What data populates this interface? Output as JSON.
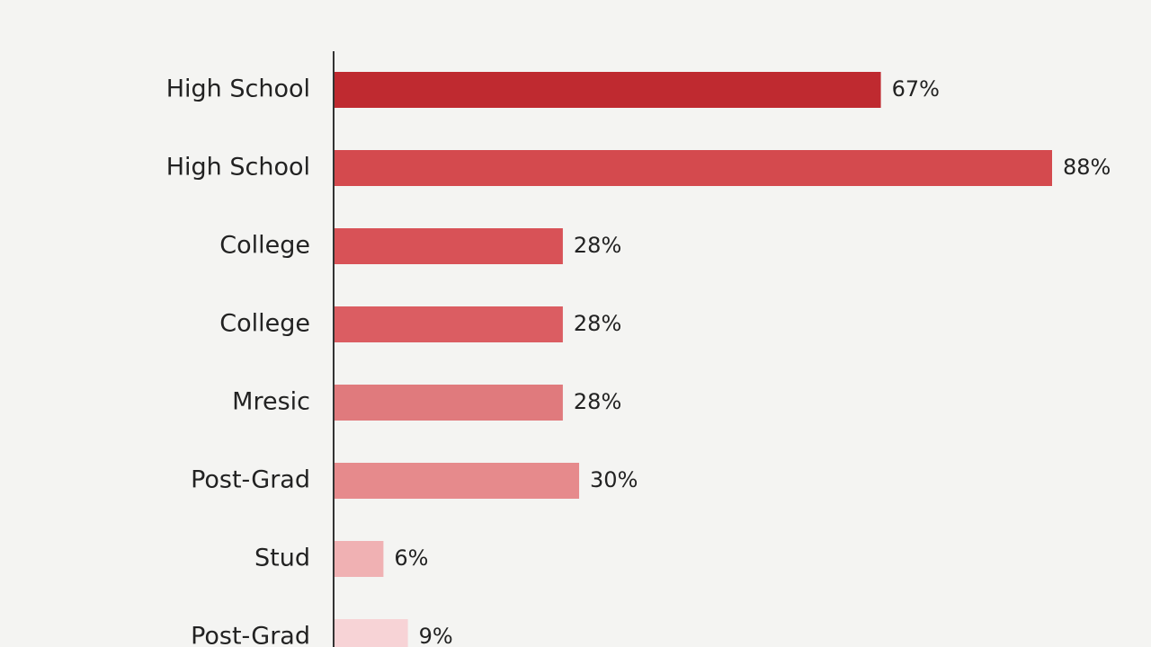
{
  "chart_data": {
    "type": "barh",
    "categories": [
      "High School",
      "High School",
      "College",
      "College",
      "Mresic",
      "Post-Grad",
      "Stud",
      "Post-Grad"
    ],
    "values": [
      67,
      88,
      28,
      28,
      28,
      30,
      6,
      9
    ],
    "value_labels": [
      "67%",
      "88%",
      "28%",
      "28%",
      "28%",
      "30%",
      "6%",
      "9%"
    ],
    "colors": [
      "#bf2a30",
      "#d44a4e",
      "#d85257",
      "#db5d62",
      "#e07a7d",
      "#e68a8c",
      "#f0b1b3",
      "#f7d3d6"
    ]
  }
}
